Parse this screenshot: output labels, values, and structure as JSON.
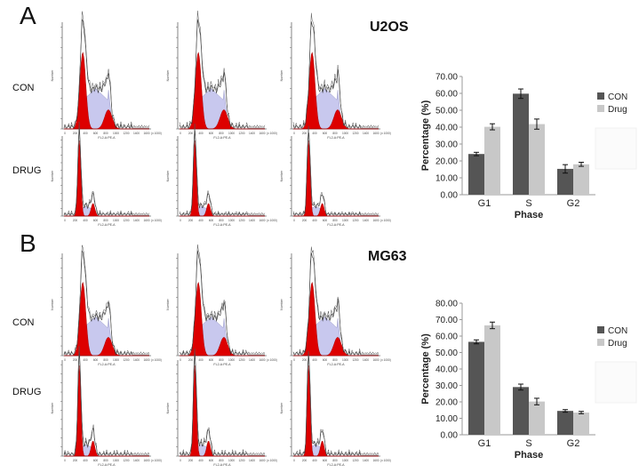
{
  "panels": [
    {
      "letter": "A",
      "cell_line": "U2OS",
      "row_labels": [
        "CON",
        "DRUG"
      ]
    },
    {
      "letter": "B",
      "cell_line": "MG63",
      "row_labels": [
        "CON",
        "DRUG"
      ]
    }
  ],
  "histogram_text": {
    "y_label": "Number",
    "x_label": "FL2-A:PE-A",
    "x_scale": "(x 1000)",
    "x_ticks": [
      "0",
      "200",
      "400",
      "600",
      "800",
      "1000",
      "1200",
      "1400",
      "1600"
    ]
  },
  "colors": {
    "con": "#555555",
    "drug": "#c8c8c8",
    "g_peak": "#dd0000",
    "s_phase": "#c8c8ee"
  },
  "chart_data": [
    {
      "type": "bar",
      "title": "U2OS",
      "categories": [
        "G1",
        "S",
        "G2"
      ],
      "series": [
        {
          "name": "CON",
          "values": [
            24.1,
            59.8,
            15.3
          ],
          "errors": [
            1.0,
            2.8,
            2.5
          ]
        },
        {
          "name": "Drug",
          "values": [
            40.2,
            41.8,
            18.0
          ],
          "errors": [
            1.8,
            3.0,
            1.2
          ]
        }
      ],
      "xlabel": "Phase",
      "ylabel": "Percentage (%)",
      "ylim": [
        0,
        70
      ],
      "yticks": [
        "0.00",
        "10.00",
        "20.00",
        "30.00",
        "40.00",
        "50.00",
        "60.00",
        "70.00"
      ],
      "legend": "right"
    },
    {
      "type": "bar",
      "title": "MG63",
      "categories": [
        "G1",
        "S",
        "G2"
      ],
      "series": [
        {
          "name": "CON",
          "values": [
            56.5,
            29.0,
            14.5
          ],
          "errors": [
            1.2,
            1.8,
            0.8
          ]
        },
        {
          "name": "Drug",
          "values": [
            66.5,
            20.2,
            13.5
          ],
          "errors": [
            2.0,
            2.0,
            0.7
          ]
        }
      ],
      "xlabel": "Phase",
      "ylabel": "Percentage (%)",
      "ylim": [
        0,
        80
      ],
      "yticks": [
        "0.00",
        "10.00",
        "20.00",
        "30.00",
        "40.00",
        "50.00",
        "60.00",
        "70.00",
        "80.00"
      ],
      "legend": "right"
    }
  ]
}
